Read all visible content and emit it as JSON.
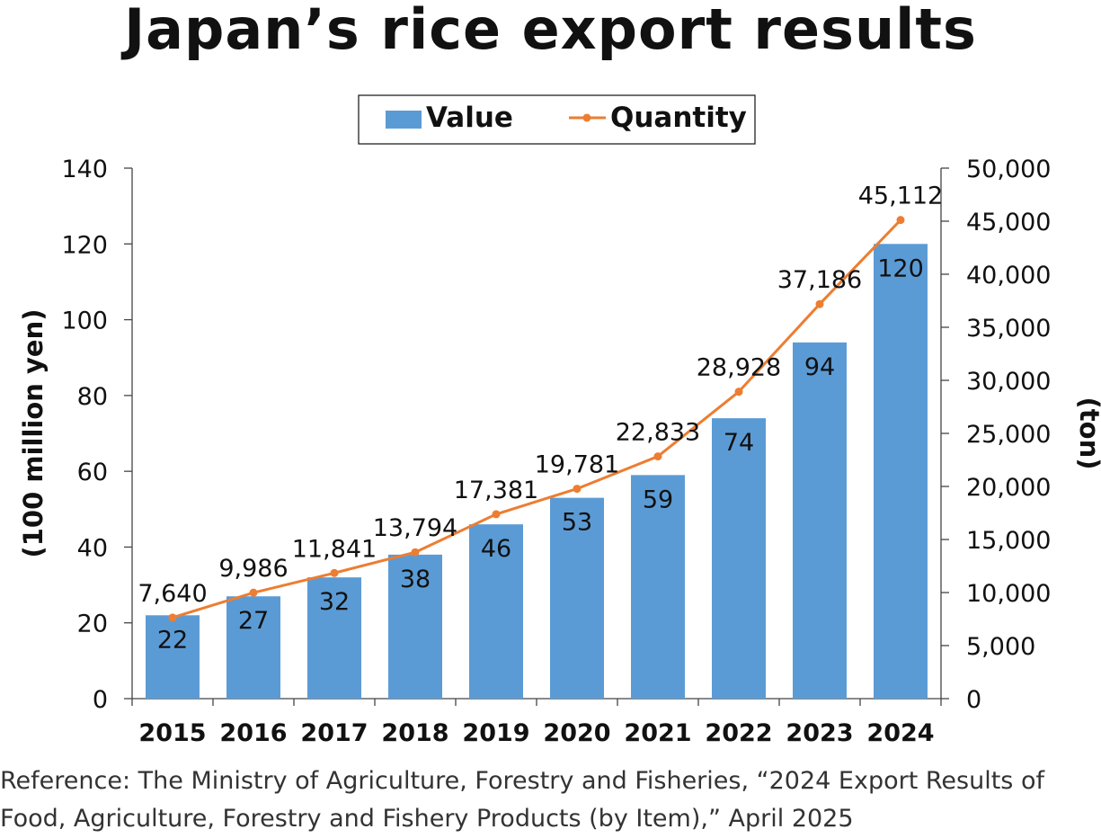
{
  "title": "Japan’s rice export results",
  "reference_lines": [
    "Reference: The Ministry of Agriculture, Forestry and Fisheries, “2024 Export Results of",
    "Food, Agriculture, Forestry and Fishery Products (by Item),” April 2025"
  ],
  "chart_data": {
    "type": "bar",
    "categories": [
      "2015",
      "2016",
      "2017",
      "2018",
      "2019",
      "2020",
      "2021",
      "2022",
      "2023",
      "2024"
    ],
    "series": [
      {
        "name": "Value",
        "type": "bar",
        "axis": "left",
        "color": "#5b9bd5",
        "values": [
          22,
          27,
          32,
          38,
          46,
          53,
          59,
          74,
          94,
          120
        ],
        "labels": [
          "22",
          "27",
          "32",
          "38",
          "46",
          "53",
          "59",
          "74",
          "94",
          "120"
        ]
      },
      {
        "name": "Quantity",
        "type": "line",
        "axis": "right",
        "color": "#ed7d31",
        "values": [
          7640,
          9986,
          11841,
          13794,
          17381,
          19781,
          22833,
          28928,
          37186,
          45112
        ],
        "labels": [
          "7,640",
          "9,986",
          "11,841",
          "13,794",
          "17,381",
          "19,781",
          "22,833",
          "28,928",
          "37,186",
          "45,112"
        ]
      }
    ],
    "ylabel_left": "(100 million yen)",
    "ylabel_right": "(ton)",
    "ylim_left": [
      0,
      140
    ],
    "ylim_right": [
      0,
      50000
    ],
    "yticks_left": [
      "0",
      "20",
      "40",
      "60",
      "80",
      "100",
      "120",
      "140"
    ],
    "yticks_right": [
      "0",
      "5,000",
      "10,000",
      "15,000",
      "20,000",
      "25,000",
      "30,000",
      "35,000",
      "40,000",
      "45,000",
      "50,000"
    ],
    "grid": false,
    "legend_position": "top-center"
  }
}
